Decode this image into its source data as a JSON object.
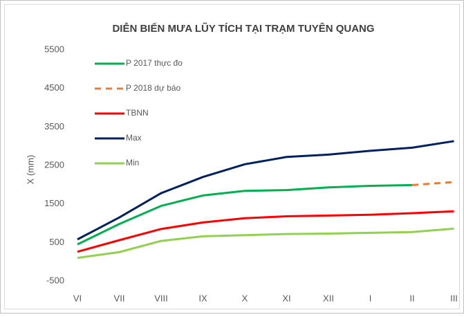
{
  "chart_data": {
    "type": "line",
    "title": "DIỄN BIẾN MƯA LŨY TÍCH TẠI TRẠM TUYÊN QUANG",
    "y_label": "X (mm)",
    "categories": [
      "VI",
      "VII",
      "VIII",
      "IX",
      "X",
      "XI",
      "XII",
      "I",
      "II",
      "III"
    ],
    "series": [
      {
        "name": "P 2017 thực đo",
        "color": "#00b050",
        "dash": false,
        "values": [
          450,
          980,
          1450,
          1720,
          1840,
          1860,
          1930,
          1970,
          1990,
          null
        ]
      },
      {
        "name": "P 2018 dự báo",
        "color": "#ed7d31",
        "dash": true,
        "values": [
          null,
          null,
          null,
          null,
          null,
          null,
          null,
          null,
          1990,
          2070
        ]
      },
      {
        "name": "TBNN",
        "color": "#ff0000",
        "dash": false,
        "values": [
          260,
          560,
          850,
          1020,
          1130,
          1180,
          1200,
          1220,
          1260,
          1310
        ]
      },
      {
        "name": "Max",
        "color": "#002060",
        "dash": false,
        "values": [
          580,
          1150,
          1780,
          2200,
          2530,
          2720,
          2780,
          2880,
          2960,
          3130
        ]
      },
      {
        "name": "Min",
        "color": "#92d050",
        "dash": false,
        "values": [
          100,
          250,
          540,
          660,
          690,
          720,
          730,
          750,
          770,
          860
        ]
      }
    ],
    "ylim": [
      -500,
      5500
    ],
    "yticks": [
      -500,
      500,
      1500,
      2500,
      3500,
      4500,
      5500
    ],
    "grid": false,
    "legend": "upper left"
  }
}
